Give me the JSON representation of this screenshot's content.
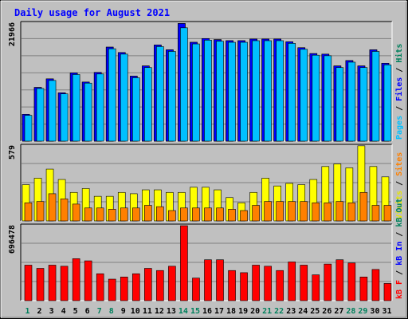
{
  "chart_data": {
    "type": "bar",
    "title": "Daily usage for August 2021",
    "categories": [
      "1",
      "2",
      "3",
      "4",
      "5",
      "6",
      "7",
      "8",
      "9",
      "10",
      "11",
      "12",
      "13",
      "14",
      "15",
      "16",
      "17",
      "18",
      "19",
      "20",
      "21",
      "22",
      "23",
      "24",
      "25",
      "26",
      "27",
      "28",
      "29",
      "30",
      "31"
    ],
    "weekend_days": [
      "1",
      "7",
      "8",
      "14",
      "15",
      "21",
      "22",
      "28",
      "29"
    ],
    "grid": true,
    "panels": [
      {
        "name": "hits-files-pages",
        "ymax": 21966,
        "ymax_label": "21966",
        "legend": [
          {
            "text": "Pages",
            "color": "#00c0ff"
          },
          {
            "text": "Files",
            "color": "#0000ff"
          },
          {
            "text": "Hits",
            "color": "#00805c"
          }
        ],
        "series": [
          {
            "name": "Hits",
            "color": "#00805c",
            "values": [
              5000,
              10000,
              11600,
              9000,
              12700,
              11000,
              12800,
              17500,
              16500,
              12100,
              14000,
              17900,
              17000,
              21900,
              18400,
              19100,
              18900,
              18700,
              18700,
              19000,
              19000,
              19000,
              18500,
              17400,
              16300,
              16200,
              14000,
              15000,
              14000,
              17000,
              14500
            ]
          },
          {
            "name": "Files",
            "color": "#0000ff",
            "values": [
              5000,
              10000,
              11600,
              9000,
              12700,
              11000,
              12800,
              17500,
              16500,
              12100,
              14000,
              17900,
              17000,
              21900,
              18400,
              19100,
              18900,
              18700,
              18700,
              19000,
              19000,
              19000,
              18500,
              17400,
              16300,
              16200,
              14000,
              15000,
              14000,
              17000,
              14500
            ]
          },
          {
            "name": "Pages",
            "color": "#00c0ff",
            "values": [
              4800,
              9800,
              11300,
              8800,
              12400,
              10800,
              12500,
              17200,
              16200,
              11800,
              13700,
              17600,
              16700,
              21100,
              18100,
              18800,
              18600,
              18400,
              18400,
              18700,
              18700,
              18700,
              18200,
              17100,
              16000,
              15900,
              13700,
              14700,
              13700,
              16700,
              14200
            ]
          }
        ]
      },
      {
        "name": "visits-sites",
        "ymax": 579,
        "ymax_label": "579",
        "legend": [
          {
            "text": "Visits",
            "color": "#e6e600"
          },
          {
            "text": "Sites",
            "color": "#ff8000"
          }
        ],
        "series": [
          {
            "name": "Visits",
            "color": "#ffff00",
            "values": [
              280,
              330,
              400,
              320,
              220,
              250,
              190,
              190,
              220,
              210,
              240,
              240,
              220,
              220,
              260,
              260,
              240,
              180,
              140,
              220,
              330,
              270,
              290,
              280,
              320,
              420,
              440,
              410,
              580,
              420,
              340
            ]
          },
          {
            "name": "Sites",
            "color": "#ff8000",
            "values": [
              140,
              150,
              210,
              170,
              130,
              100,
              100,
              90,
              100,
              100,
              120,
              110,
              80,
              100,
              100,
              100,
              100,
              90,
              80,
              120,
              150,
              150,
              150,
              150,
              140,
              140,
              150,
              140,
              220,
              120,
              120
            ]
          }
        ]
      },
      {
        "name": "kbytes",
        "ymax": 696478,
        "ymax_label": "696478",
        "legend": [
          {
            "text": "kB F",
            "color": "#ff0000"
          },
          {
            "text": "kB In",
            "color": "#0000ff"
          },
          {
            "text": "kB Out",
            "color": "#00805c"
          }
        ],
        "series": [
          {
            "name": "kB F",
            "color": "#ff0000",
            "values": [
              330000,
              300000,
              330000,
              320000,
              390000,
              370000,
              250000,
              200000,
              220000,
              250000,
              300000,
              280000,
              320000,
              696478,
              210000,
              380000,
              380000,
              280000,
              260000,
              330000,
              320000,
              280000,
              360000,
              330000,
              240000,
              340000,
              380000,
              350000,
              220000,
              290000,
              160000
            ]
          }
        ]
      }
    ]
  }
}
